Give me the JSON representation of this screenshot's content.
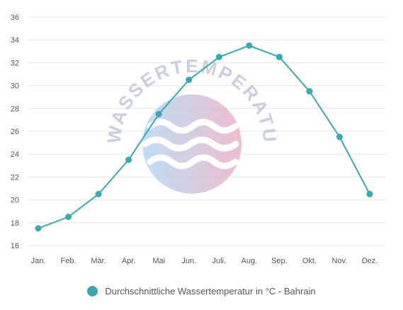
{
  "watermark": {
    "text": "WASSERTEMPERATUR.ORG"
  },
  "chart_data": {
    "type": "line",
    "categories": [
      "Jan.",
      "Feb.",
      "Mär.",
      "Apr.",
      "Mai",
      "Jun.",
      "Juli.",
      "Aug.",
      "Sep.",
      "Okt.",
      "Nov.",
      "Dez."
    ],
    "series": [
      {
        "name": "Durchschnittliche Wassertemperatur in °C - Bahrain",
        "values": [
          17.5,
          18.5,
          20.5,
          23.5,
          27.5,
          30.5,
          32.5,
          33.5,
          32.5,
          29.5,
          25.5,
          20.5
        ],
        "color": "#3aa8ae"
      }
    ],
    "yticks": [
      16,
      18,
      20,
      22,
      24,
      26,
      28,
      30,
      32,
      34,
      36
    ],
    "ylim": [
      16,
      36
    ],
    "grid": true,
    "legend": "bottom-center"
  }
}
